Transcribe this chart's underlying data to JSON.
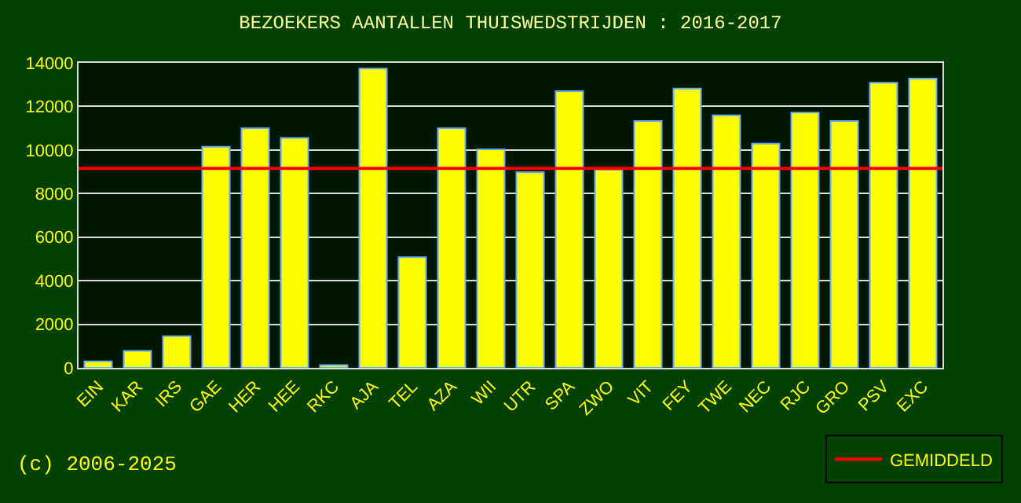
{
  "chart_data": {
    "type": "bar",
    "title": "BEZOEKERS AANTALLEN THUISWEDSTRIJDEN : 2016-2017",
    "categories": [
      "EIN",
      "KAR",
      "IRS",
      "GAE",
      "HER",
      "HEE",
      "RKC",
      "AJA",
      "TEL",
      "AZA",
      "WII",
      "UTR",
      "SPA",
      "ZWO",
      "VIT",
      "FEY",
      "TWE",
      "NEC",
      "RJC",
      "GRO",
      "PSV",
      "EXC"
    ],
    "values": [
      300,
      780,
      1450,
      10150,
      11000,
      10550,
      130,
      13740,
      5080,
      11000,
      10030,
      8980,
      12700,
      9100,
      11330,
      12820,
      11590,
      10290,
      11720,
      11330,
      13090,
      13280
    ],
    "color": "#ffff00",
    "ylim": [
      0,
      14000
    ],
    "yticks": [
      0,
      2000,
      4000,
      6000,
      8000,
      10000,
      12000,
      14000
    ],
    "grid": "y",
    "ref_lines": [
      {
        "axis": "y",
        "value": 9160,
        "label": "GEMIDDELD",
        "color": "#ff0000"
      }
    ],
    "legend": "bottom right",
    "annotations": [
      "(c) 2006-2025"
    ]
  }
}
